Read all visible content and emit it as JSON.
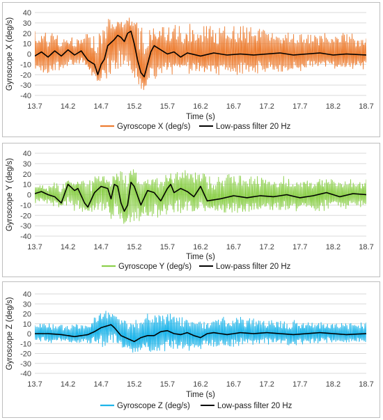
{
  "charts": [
    {
      "type": "line",
      "xlabel": "Time (s)",
      "ylabel": "Gyroscope X (deg/s)",
      "xlim": [
        13.7,
        18.7
      ],
      "ylim": [
        -40,
        40
      ],
      "xticks": [
        "13.7",
        "14.2",
        "14.7",
        "15.2",
        "15.7",
        "16.2",
        "16.7",
        "17.2",
        "17.7",
        "18.2",
        "18.7"
      ],
      "yticks": [
        "-40",
        "-30",
        "-20",
        "-10",
        "0",
        "10",
        "20",
        "30",
        "40"
      ],
      "grid": "horizontal",
      "legend_position": "bottom",
      "series": [
        {
          "name": "Gyroscope X (deg/s)",
          "color": "#ED7D31",
          "kind": "raw",
          "envelope": {
            "x": [
              13.7,
              13.9,
              14.1,
              14.3,
              14.5,
              14.65,
              14.8,
              14.95,
              15.05,
              15.15,
              15.25,
              15.35,
              15.5,
              15.7,
              15.9,
              16.1,
              16.3,
              16.6,
              16.9,
              17.2,
              17.5,
              17.8,
              18.1,
              18.4,
              18.7
            ],
            "upper": [
              24,
              22,
              20,
              18,
              22,
              26,
              36,
              38,
              35,
              38,
              40,
              30,
              25,
              30,
              28,
              30,
              28,
              28,
              28,
              24,
              24,
              22,
              22,
              22,
              22
            ],
            "lower": [
              -20,
              -22,
              -15,
              -12,
              -16,
              -30,
              -26,
              -20,
              -10,
              -20,
              -32,
              -38,
              -25,
              -22,
              -20,
              -20,
              -22,
              -22,
              -20,
              -18,
              -18,
              -16,
              -16,
              -16,
              -16
            ]
          }
        },
        {
          "name": "Low-pass filter 20 Hz",
          "color": "#000000",
          "kind": "filtered",
          "x": [
            13.7,
            13.8,
            13.9,
            14.0,
            14.1,
            14.2,
            14.3,
            14.4,
            14.5,
            14.6,
            14.65,
            14.7,
            14.75,
            14.8,
            14.9,
            14.95,
            15.0,
            15.05,
            15.1,
            15.15,
            15.2,
            15.25,
            15.3,
            15.35,
            15.4,
            15.45,
            15.5,
            15.55,
            15.6,
            15.7,
            15.8,
            15.9,
            16.0,
            16.2,
            16.4,
            16.6,
            16.8,
            17.0,
            17.2,
            17.4,
            17.6,
            17.8,
            18.0,
            18.2,
            18.4,
            18.7
          ],
          "y": [
            -2,
            2,
            -3,
            3,
            -2,
            4,
            -1,
            3,
            -6,
            -10,
            -20,
            -10,
            -5,
            8,
            14,
            18,
            16,
            12,
            20,
            22,
            10,
            -6,
            -18,
            -22,
            -10,
            2,
            8,
            6,
            4,
            0,
            2,
            -3,
            1,
            -2,
            1,
            -1,
            0,
            -1,
            0,
            1,
            -1,
            0,
            1,
            -1,
            0,
            -1
          ]
        }
      ]
    },
    {
      "type": "line",
      "xlabel": "Time (s)",
      "ylabel": "Gyroscope Y (deg/s)",
      "xlim": [
        13.7,
        18.7
      ],
      "ylim": [
        -40,
        40
      ],
      "xticks": [
        "13.7",
        "14.2",
        "14.7",
        "15.2",
        "15.7",
        "16.2",
        "16.7",
        "17.2",
        "17.7",
        "18.2",
        "18.7"
      ],
      "yticks": [
        "-40",
        "-30",
        "-20",
        "-10",
        "0",
        "10",
        "20",
        "30",
        "40"
      ],
      "grid": "horizontal",
      "legend_position": "bottom",
      "series": [
        {
          "name": "Gyroscope Y (deg/s)",
          "color": "#8DD04C",
          "kind": "raw",
          "envelope": {
            "x": [
              13.7,
              13.9,
              14.1,
              14.3,
              14.5,
              14.7,
              14.9,
              15.1,
              15.2,
              15.4,
              15.6,
              15.8,
              16.0,
              16.2,
              16.4,
              16.6,
              16.9,
              17.2,
              17.5,
              17.8,
              18.1,
              18.4,
              18.7
            ],
            "upper": [
              12,
              10,
              14,
              16,
              18,
              18,
              22,
              30,
              28,
              18,
              20,
              22,
              25,
              22,
              20,
              22,
              20,
              20,
              18,
              18,
              16,
              16,
              16
            ],
            "lower": [
              -12,
              -10,
              -14,
              -18,
              -16,
              -20,
              -28,
              -34,
              -30,
              -26,
              -22,
              -20,
              -20,
              -18,
              -16,
              -20,
              -18,
              -18,
              -16,
              -16,
              -16,
              -14,
              -14
            ]
          }
        },
        {
          "name": "Low-pass filter 20 Hz",
          "color": "#000000",
          "kind": "filtered",
          "x": [
            13.7,
            13.8,
            13.9,
            14.0,
            14.1,
            14.2,
            14.3,
            14.35,
            14.45,
            14.5,
            14.6,
            14.7,
            14.8,
            14.85,
            14.9,
            14.95,
            15.0,
            15.05,
            15.1,
            15.15,
            15.2,
            15.3,
            15.4,
            15.5,
            15.6,
            15.7,
            15.75,
            15.8,
            15.9,
            16.0,
            16.1,
            16.2,
            16.3,
            16.5,
            16.7,
            16.9,
            17.1,
            17.3,
            17.5,
            17.7,
            17.9,
            18.1,
            18.3,
            18.5,
            18.7
          ],
          "y": [
            1,
            3,
            0,
            -2,
            -8,
            10,
            4,
            6,
            -8,
            -12,
            2,
            8,
            6,
            -4,
            10,
            8,
            -8,
            -16,
            -10,
            12,
            8,
            -10,
            4,
            2,
            -6,
            6,
            10,
            2,
            6,
            3,
            -2,
            8,
            -6,
            -4,
            -1,
            -3,
            -1,
            -2,
            0,
            -3,
            -1,
            2,
            -2,
            1,
            0
          ]
        }
      ]
    },
    {
      "type": "line",
      "xlabel": "Time (s)",
      "ylabel": "Gyroscope Z (deg/s)",
      "xlim": [
        13.7,
        18.7
      ],
      "ylim": [
        -40,
        40
      ],
      "xticks": [
        "13.7",
        "14.2",
        "14.7",
        "15.2",
        "15.7",
        "16.2",
        "16.7",
        "17.2",
        "17.7",
        "18.2",
        "18.7"
      ],
      "yticks": [
        "-40",
        "-30",
        "-20",
        "-10",
        "0",
        "10",
        "20",
        "30",
        "40"
      ],
      "grid": "horizontal",
      "legend_position": "bottom",
      "series": [
        {
          "name": "Gyroscope Z (deg/s)",
          "color": "#1EB5EA",
          "kind": "raw",
          "envelope": {
            "x": [
              13.7,
              13.9,
              14.1,
              14.3,
              14.5,
              14.7,
              14.8,
              14.9,
              15.1,
              15.3,
              15.5,
              15.7,
              15.9,
              16.1,
              16.3,
              16.5,
              16.7,
              16.9,
              17.2,
              17.5,
              17.8,
              18.1,
              18.4,
              18.7
            ],
            "upper": [
              10,
              12,
              10,
              10,
              12,
              22,
              26,
              20,
              16,
              18,
              24,
              22,
              18,
              16,
              14,
              18,
              18,
              16,
              14,
              14,
              14,
              12,
              12,
              12
            ],
            "lower": [
              -8,
              -10,
              -8,
              -10,
              -10,
              -14,
              -12,
              -10,
              -20,
              -22,
              -18,
              -20,
              -18,
              -18,
              -16,
              -14,
              -14,
              -12,
              -12,
              -12,
              -12,
              -10,
              -10,
              -10
            ]
          }
        },
        {
          "name": "Low-pass filter 20 Hz",
          "color": "#000000",
          "kind": "filtered",
          "x": [
            13.7,
            13.9,
            14.1,
            14.3,
            14.5,
            14.6,
            14.7,
            14.8,
            14.85,
            14.9,
            15.0,
            15.1,
            15.2,
            15.3,
            15.4,
            15.5,
            15.6,
            15.7,
            15.8,
            15.9,
            16.0,
            16.1,
            16.2,
            16.3,
            16.4,
            16.6,
            16.8,
            17.0,
            17.2,
            17.4,
            17.6,
            17.8,
            18.0,
            18.2,
            18.4,
            18.7
          ],
          "y": [
            0,
            0,
            -1,
            -3,
            -1,
            2,
            6,
            8,
            9,
            6,
            -2,
            -5,
            -8,
            -4,
            -2,
            -2,
            2,
            3,
            0,
            -1,
            1,
            -2,
            -4,
            0,
            1,
            -1,
            1,
            0,
            1,
            0,
            -1,
            0,
            1,
            0,
            -1,
            0
          ]
        }
      ]
    }
  ]
}
